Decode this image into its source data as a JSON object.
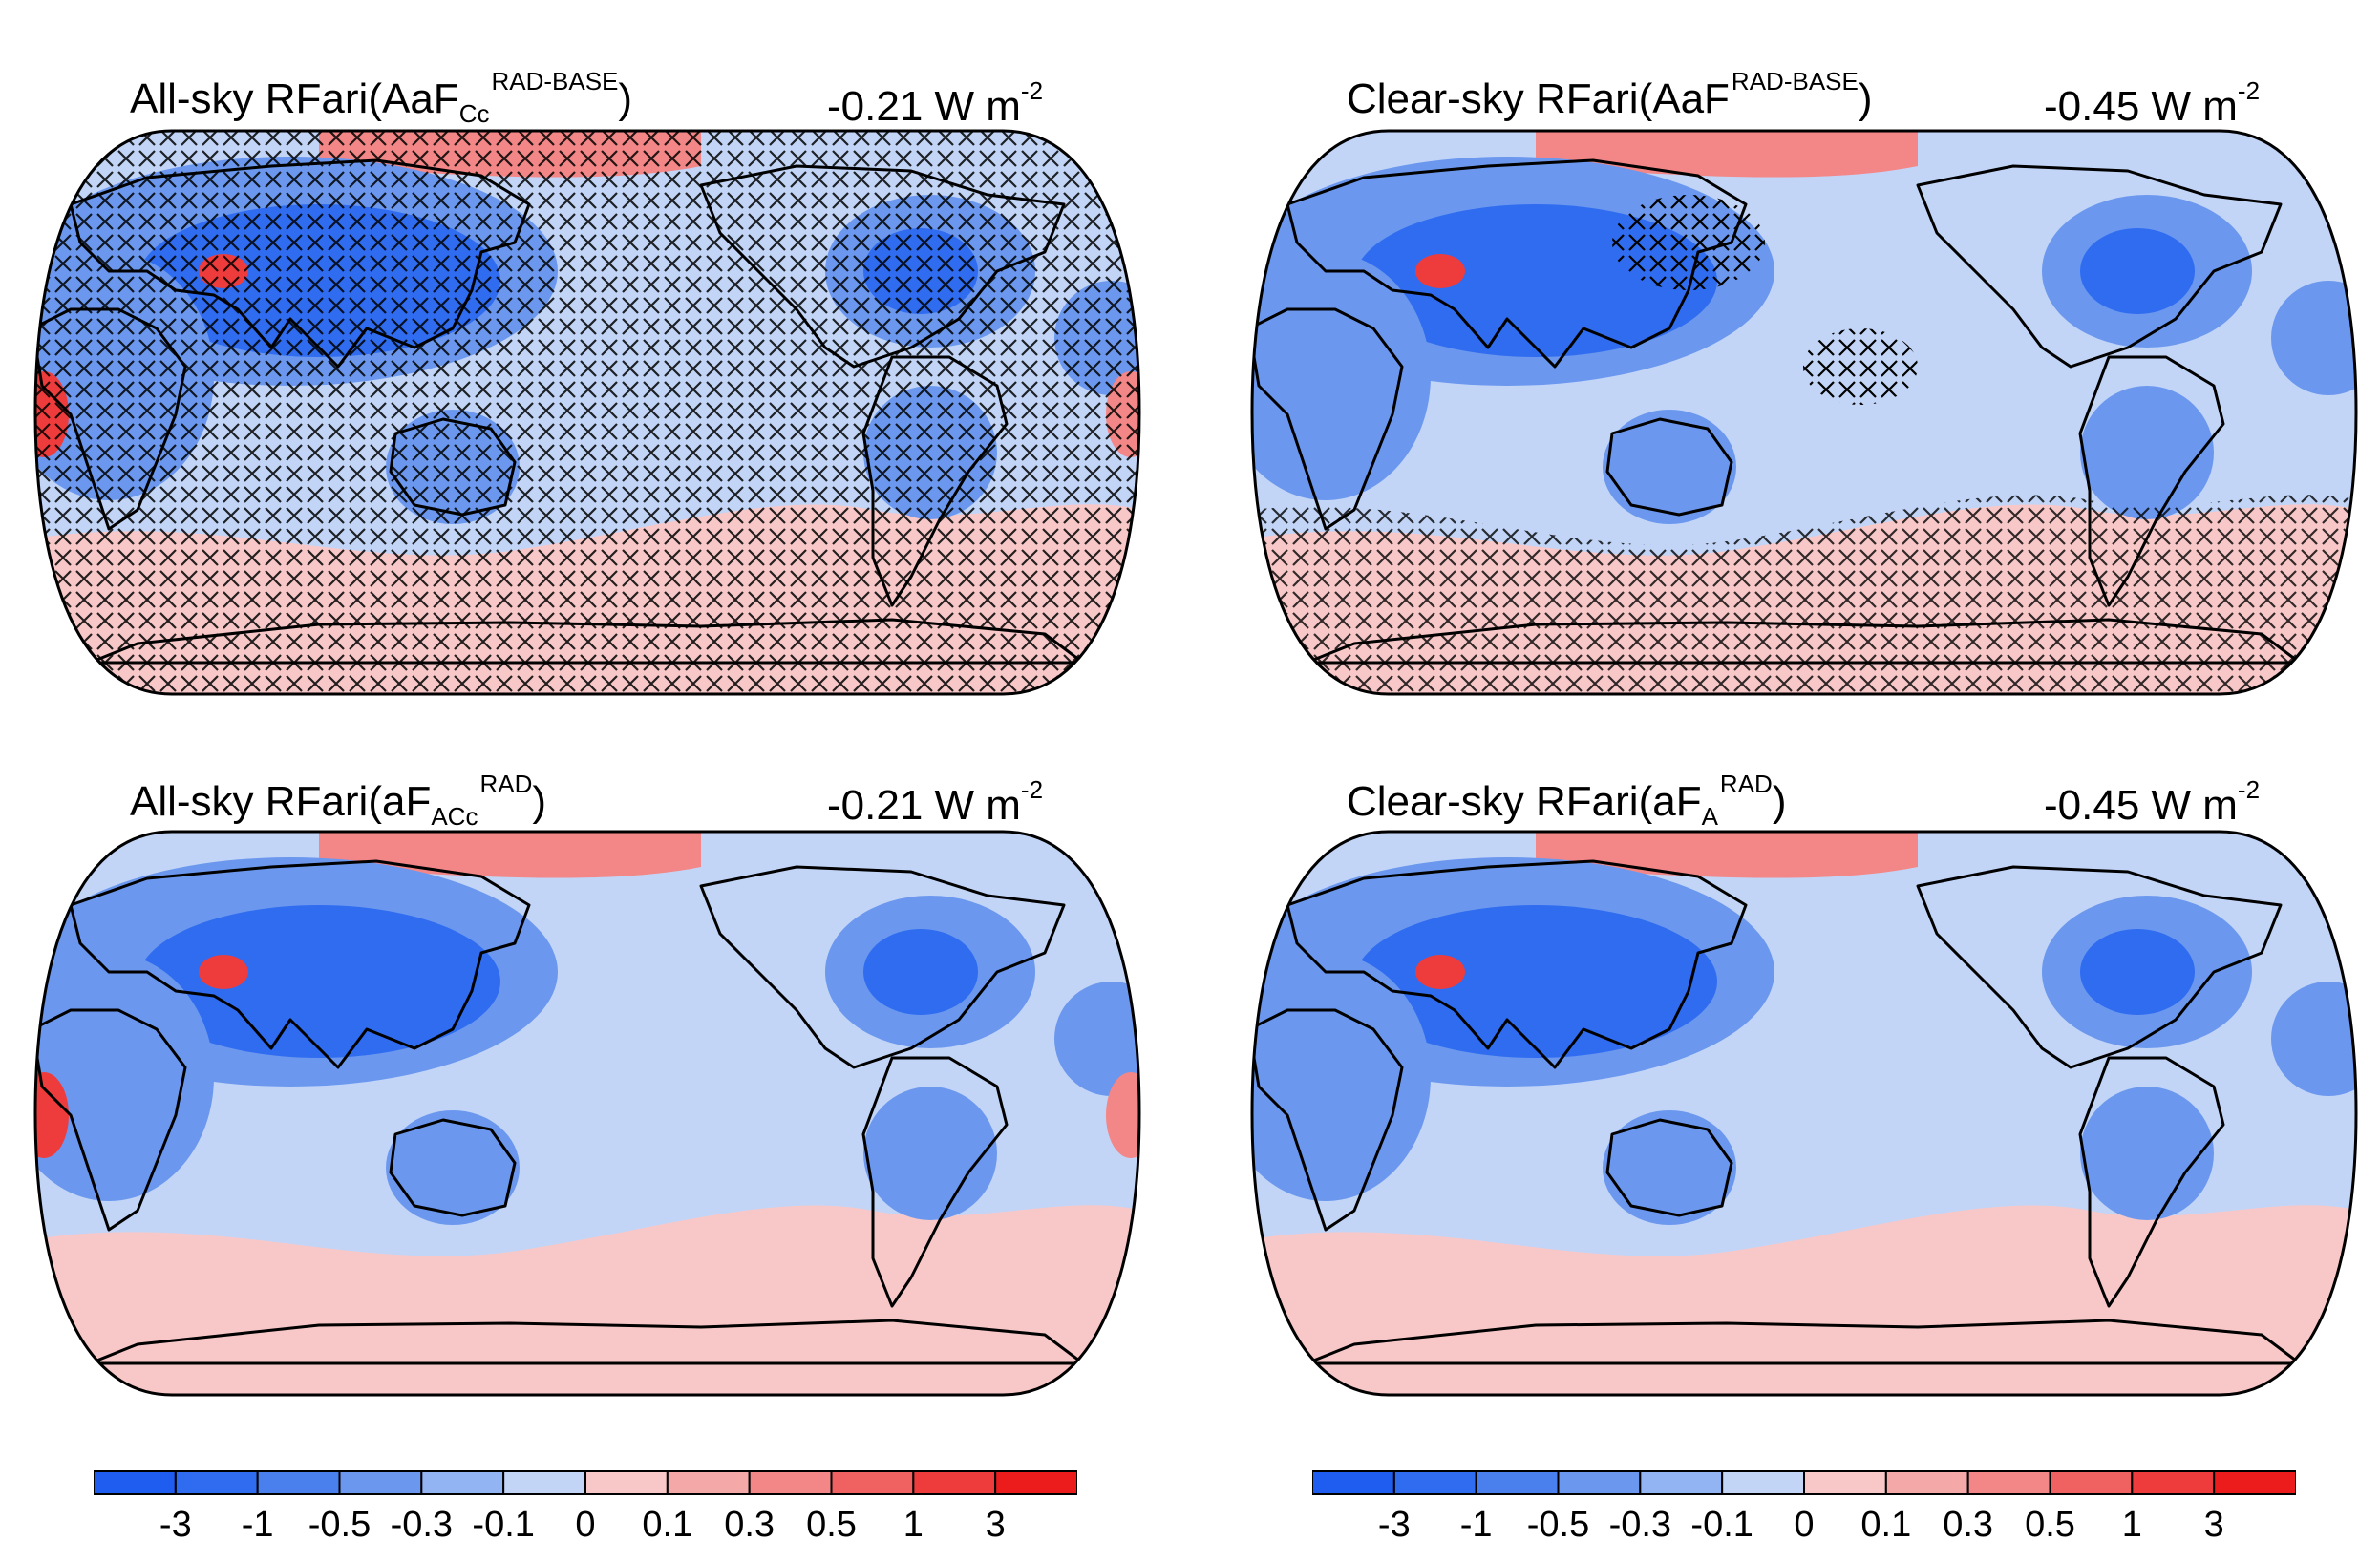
{
  "panels": [
    {
      "id": "a",
      "title_main": "All-sky RFari(AaF",
      "title_sub": "Cc",
      "title_sup": "RAD-BASE",
      "title_end": ")",
      "value_main": "-0.21 W m",
      "value_sup": "-2",
      "hatching": "dense"
    },
    {
      "id": "b",
      "title_main": "Clear-sky RFari(AaF",
      "title_sub": "",
      "title_sup": "RAD-BASE",
      "title_end": ")",
      "value_main": "-0.45 W m",
      "value_sup": "-2",
      "hatching": "sparse"
    },
    {
      "id": "c",
      "title_main": "All-sky RFari(aF",
      "title_sub": "ACc",
      "title_sup": "RAD",
      "title_end": ")",
      "value_main": "-0.21 W m",
      "value_sup": "-2",
      "hatching": "none"
    },
    {
      "id": "d",
      "title_main": "Clear-sky RFari(aF",
      "title_sub": "A",
      "title_sup": "RAD",
      "title_end": ")",
      "value_main": "-0.45 W m",
      "value_sup": "-2",
      "hatching": "none"
    }
  ],
  "colorbar": {
    "labels": [
      "-3",
      "-1",
      "-0.5",
      "-0.3",
      "-0.1",
      "0",
      "0.1",
      "0.3",
      "0.5",
      "1",
      "3"
    ],
    "colors": [
      "#1f5cf0",
      "#2f6cf0",
      "#4a80ee",
      "#6b98ee",
      "#93b4f2",
      "#c2d5f7",
      "#f8c8c8",
      "#f5a8a8",
      "#f38686",
      "#f06262",
      "#ee3c3c",
      "#ec1c1c"
    ]
  },
  "palette": {
    "deep_blue": "#2f6cf0",
    "mid_blue": "#6b98ee",
    "light_blue": "#c2d5f7",
    "light_red": "#f8c8c8",
    "mid_red": "#f38686",
    "strong_red": "#ee3c3c",
    "coast": "#000000"
  }
}
